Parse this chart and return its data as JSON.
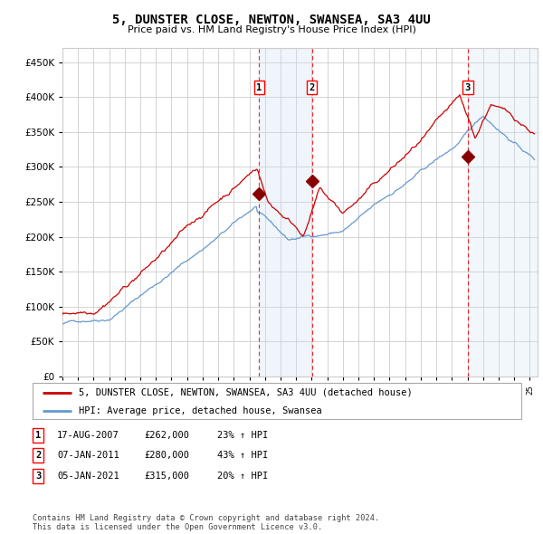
{
  "title": "5, DUNSTER CLOSE, NEWTON, SWANSEA, SA3 4UU",
  "subtitle": "Price paid vs. HM Land Registry's House Price Index (HPI)",
  "xlim_start": 1995.0,
  "xlim_end": 2025.5,
  "ylim": [
    0,
    470000
  ],
  "yticks": [
    0,
    50000,
    100000,
    150000,
    200000,
    250000,
    300000,
    350000,
    400000,
    450000
  ],
  "sale_dates": [
    2007.63,
    2011.02,
    2021.02
  ],
  "sale_prices": [
    262000,
    280000,
    315000
  ],
  "sale_labels": [
    "1",
    "2",
    "3"
  ],
  "hpi_color": "#6699cc",
  "price_color": "#cc0000",
  "marker_color": "#880000",
  "shading_color": "#cce0f0",
  "grid_color": "#cccccc",
  "bg_color": "#ffffff",
  "legend_price_label": "5, DUNSTER CLOSE, NEWTON, SWANSEA, SA3 4UU (detached house)",
  "legend_hpi_label": "HPI: Average price, detached house, Swansea",
  "table_data": [
    [
      "1",
      "17-AUG-2007",
      "£262,000",
      "23% ↑ HPI"
    ],
    [
      "2",
      "07-JAN-2011",
      "£280,000",
      "43% ↑ HPI"
    ],
    [
      "3",
      "05-JAN-2021",
      "£315,000",
      "20% ↑ HPI"
    ]
  ],
  "footnote": "Contains HM Land Registry data © Crown copyright and database right 2024.\nThis data is licensed under the Open Government Licence v3.0."
}
